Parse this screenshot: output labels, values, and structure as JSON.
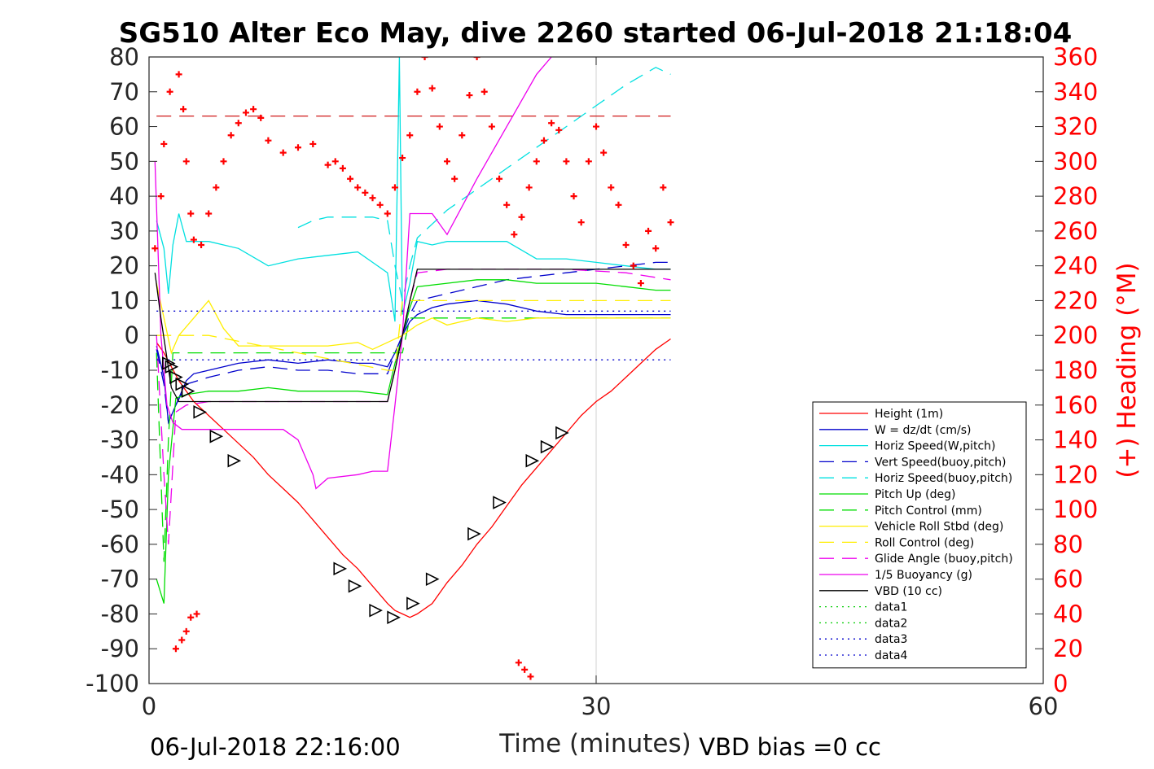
{
  "chart_data": {
    "type": "line",
    "title": "SG510 Alter Eco May, dive 2260 started 06-Jul-2018 21:18:04",
    "xlabel": "Time (minutes)",
    "ylabel_right": "(+) Heading (°M)",
    "xlim": [
      0,
      60
    ],
    "ylim": [
      -100,
      80
    ],
    "ylim_right": [
      0,
      360
    ],
    "xticks": [
      0,
      30,
      60
    ],
    "yticks": [
      -100,
      -90,
      -80,
      -70,
      -60,
      -50,
      -40,
      -30,
      -20,
      -10,
      0,
      10,
      20,
      30,
      40,
      50,
      60,
      70,
      80
    ],
    "yticks_right": [
      0,
      20,
      40,
      60,
      80,
      100,
      120,
      140,
      160,
      180,
      200,
      220,
      240,
      260,
      280,
      300,
      320,
      340,
      360
    ],
    "grid": "x at 30",
    "legend_position": "bottom-right",
    "footer_left": "06-Jul-2018 22:16:00",
    "footer_right": "VBD bias =0 cc",
    "series": [
      {
        "name": "Height (1m)",
        "color": "#ff0000",
        "style": "solid",
        "x": [
          0.5,
          1,
          1.5,
          2,
          2.5,
          3,
          4,
          5,
          6,
          7,
          8,
          9,
          10,
          11,
          12,
          13,
          14,
          15,
          16,
          16.5,
          17,
          17.5,
          18,
          19,
          20,
          21,
          22,
          23,
          24,
          25,
          26,
          27,
          28,
          29,
          30,
          31,
          32,
          33,
          34,
          35
        ],
        "y": [
          -2,
          -5,
          -9,
          -13,
          -16,
          -19,
          -23,
          -27,
          -31,
          -35,
          -40,
          -44,
          -48,
          -53,
          -58,
          -63,
          -67,
          -72,
          -77,
          -79,
          -80,
          -81,
          -80,
          -77,
          -71,
          -66,
          -60,
          -55,
          -49,
          -43,
          -38,
          -33,
          -28,
          -23,
          -19,
          -16,
          -12,
          -8,
          -4,
          -1
        ]
      },
      {
        "name": "W = dz/dt (cm/s)",
        "color": "#0000cc",
        "style": "solid",
        "x": [
          0.5,
          1,
          1.3,
          1.8,
          2.5,
          3,
          4,
          6,
          8,
          10,
          12,
          14,
          15,
          16,
          16.5,
          17,
          17.5,
          18,
          19,
          20,
          22,
          24,
          26,
          28,
          30,
          32,
          34,
          35
        ],
        "y": [
          -3,
          -12,
          -25,
          -20,
          -13,
          -11,
          -10,
          -8,
          -7,
          -8,
          -7,
          -8,
          -8,
          -9,
          -5,
          0,
          4,
          6,
          8,
          9,
          10,
          9,
          7,
          6,
          6,
          6,
          6,
          6
        ]
      },
      {
        "name": "Horiz Speed(W,pitch)",
        "color": "#00e0e0",
        "style": "solid",
        "x": [
          0.5,
          1,
          1.3,
          1.6,
          2,
          2.5,
          4,
          6,
          8,
          10,
          12,
          14,
          15,
          16,
          16.5,
          16.8,
          17,
          17.5,
          18,
          19,
          20,
          22,
          24,
          26,
          28,
          30,
          32,
          34,
          35
        ],
        "y": [
          33,
          25,
          12,
          26,
          35,
          27,
          27,
          25,
          20,
          22,
          23,
          24,
          21,
          18,
          4,
          80,
          6,
          15,
          27,
          26,
          27,
          27,
          27,
          22,
          22,
          21,
          20,
          19,
          19
        ]
      },
      {
        "name": "Vert Speed(buoy,pitch)",
        "color": "#0000cc",
        "style": "dashed",
        "x": [
          0.5,
          1,
          1.3,
          1.8,
          2.5,
          4,
          6,
          8,
          10,
          12,
          14,
          16,
          16.5,
          17,
          17.5,
          18,
          20,
          22,
          24,
          26,
          28,
          30,
          32,
          34,
          35
        ],
        "y": [
          -4,
          -14,
          -25,
          -20,
          -14,
          -12,
          -10,
          -9,
          -10,
          -10,
          -11,
          -11,
          -5,
          0,
          6,
          10,
          12,
          14,
          16,
          17,
          18,
          19,
          20,
          21,
          21
        ]
      },
      {
        "name": "Horiz Speed(buoy,pitch)",
        "color": "#00e0e0",
        "style": "dashed",
        "x": [
          10,
          11,
          12,
          13,
          14,
          15,
          16,
          16.5,
          17,
          17.5,
          18,
          19,
          20,
          22,
          24,
          26,
          28,
          30,
          32,
          34,
          35
        ],
        "y": [
          31,
          33,
          34,
          34,
          34,
          34,
          33,
          20,
          10,
          20,
          28,
          32,
          36,
          42,
          48,
          54,
          60,
          66,
          72,
          77,
          75
        ]
      },
      {
        "name": "Pitch Up (deg)",
        "color": "#00dd00",
        "style": "solid",
        "x": [
          0.5,
          1,
          1.3,
          1.8,
          2.5,
          4,
          6,
          8,
          10,
          12,
          14,
          16,
          16.5,
          17,
          17.5,
          18,
          20,
          22,
          24,
          26,
          28,
          30,
          32,
          34,
          35
        ],
        "y": [
          -70,
          -77,
          -40,
          -18,
          -17,
          -16,
          -16,
          -15,
          -16,
          -16,
          -16,
          -17,
          -8,
          0,
          8,
          14,
          15,
          16,
          16,
          15,
          15,
          15,
          14,
          13,
          13
        ]
      },
      {
        "name": "Pitch Control (mm)",
        "color": "#00dd00",
        "style": "dashed",
        "x": [
          0.5,
          1,
          1.3,
          1.6,
          2,
          16,
          16.5,
          17,
          17.5,
          18,
          35
        ],
        "y": [
          -5,
          -65,
          -30,
          -5,
          -5,
          -5,
          -5,
          -5,
          5,
          5,
          5
        ]
      },
      {
        "name": "Vehicle Roll Stbd (deg)",
        "color": "#ffee00",
        "style": "solid",
        "x": [
          0.5,
          1,
          1.5,
          2,
          3,
          4,
          5,
          6,
          8,
          10,
          12,
          14,
          15,
          16,
          17,
          18,
          19,
          20,
          22,
          24,
          26,
          28,
          30,
          32,
          34,
          35
        ],
        "y": [
          15,
          5,
          -5,
          0,
          5,
          10,
          2,
          -3,
          -3,
          -3,
          -3,
          -2,
          -4,
          -2,
          0,
          3,
          5,
          3,
          5,
          4,
          5,
          5,
          5,
          5,
          5,
          5
        ]
      },
      {
        "name": "Roll Control (deg)",
        "color": "#ffee00",
        "style": "dashed",
        "x": [
          0.5,
          2,
          4,
          16,
          16.5,
          17,
          18,
          20,
          26,
          35
        ],
        "y": [
          0,
          0,
          0,
          -10,
          -10,
          10,
          10,
          10,
          10,
          10
        ]
      },
      {
        "name": "Glide Angle (buoy,pitch)",
        "color": "#ee00ee",
        "style": "dashed",
        "x": [
          0.5,
          1,
          1.3,
          1.8,
          2.5,
          4,
          8,
          12,
          16,
          16.5,
          17,
          17.5,
          18,
          20,
          24,
          28,
          32,
          35
        ],
        "y": [
          0,
          -40,
          -60,
          -22,
          -20,
          -19,
          -19,
          -19,
          -19,
          -10,
          0,
          10,
          18,
          19,
          19,
          19,
          18,
          16
        ]
      },
      {
        "name": "1/5 Buoyancy (g)",
        "color": "#ee00ee",
        "style": "solid",
        "x": [
          0.4,
          0.8,
          1.2,
          1.6,
          2.2,
          4,
          6,
          8,
          9,
          10,
          10.5,
          11,
          11.2,
          12,
          14,
          15,
          16,
          16.5,
          17,
          17.5,
          19,
          20,
          22,
          24,
          26,
          27
        ],
        "y": [
          50,
          0,
          -20,
          -25,
          -27,
          -27,
          -27,
          -27,
          -27,
          -30,
          -35,
          -40,
          -44,
          -41,
          -40,
          -39,
          -39,
          -20,
          0,
          35,
          35,
          29,
          45,
          60,
          75,
          80
        ]
      },
      {
        "name": "VBD (10 cc)",
        "color": "#000000",
        "style": "solid",
        "x": [
          0.4,
          0.8,
          1.5,
          2,
          3,
          15,
          16,
          16.5,
          17,
          17.5,
          18,
          19,
          20,
          30,
          35
        ],
        "y": [
          18,
          5,
          -15,
          -19,
          -19,
          -19,
          -19,
          -10,
          0,
          10,
          19,
          19,
          19,
          19,
          19
        ]
      },
      {
        "name": "data1",
        "color": "#00cc00",
        "style": "dotted",
        "x": [],
        "y": []
      },
      {
        "name": "data2",
        "color": "#00cc00",
        "style": "dotted",
        "x": [],
        "y": []
      },
      {
        "name": "data3",
        "color": "#0000cc",
        "style": "dotted",
        "x": [
          0.5,
          35
        ],
        "y": [
          7,
          7
        ]
      },
      {
        "name": "data4",
        "color": "#0000cc",
        "style": "dotted",
        "x": [
          0.5,
          35
        ],
        "y": [
          -7,
          -7
        ]
      }
    ],
    "extra_lines": [
      {
        "color": "#cc0000",
        "style": "dashed",
        "x": [
          0.5,
          35
        ],
        "y": [
          63,
          63
        ]
      }
    ],
    "markers": [
      {
        "x": 1.3,
        "y": -8
      },
      {
        "x": 1.5,
        "y": -9
      },
      {
        "x": 1.8,
        "y": -12
      },
      {
        "x": 2.2,
        "y": -14
      },
      {
        "x": 2.6,
        "y": -16
      },
      {
        "x": 3.4,
        "y": -22
      },
      {
        "x": 4.5,
        "y": -29
      },
      {
        "x": 5.7,
        "y": -36
      },
      {
        "x": 12.8,
        "y": -67
      },
      {
        "x": 13.8,
        "y": -72
      },
      {
        "x": 15.2,
        "y": -79
      },
      {
        "x": 16.4,
        "y": -81
      },
      {
        "x": 17.7,
        "y": -77
      },
      {
        "x": 19,
        "y": -70
      },
      {
        "x": 21.8,
        "y": -57
      },
      {
        "x": 23.5,
        "y": -48
      },
      {
        "x": 25.7,
        "y": -36
      },
      {
        "x": 26.7,
        "y": -32
      },
      {
        "x": 27.7,
        "y": -28
      }
    ],
    "heading": {
      "color": "#ff0000",
      "x": [
        0.4,
        0.8,
        1,
        1.4,
        1.7,
        2,
        2.3,
        2.5,
        2.8,
        3,
        3.5,
        4,
        4.5,
        5,
        5.5,
        6,
        6.5,
        7,
        7.5,
        8,
        9,
        10,
        11,
        12,
        12.5,
        13,
        13.5,
        14,
        14.5,
        15,
        15.5,
        16,
        16.5,
        17,
        17.5,
        18,
        18.5,
        19,
        19.5,
        20,
        20.5,
        21,
        21.5,
        22,
        22.5,
        23,
        23.5,
        24,
        24.5,
        25,
        25.5,
        26,
        26.5,
        27,
        27.5,
        28,
        28.5,
        29,
        29.5,
        30,
        30.5,
        31,
        31.5,
        32,
        32.5,
        33,
        33.5,
        34,
        34.5,
        35,
        1.8,
        2.2,
        2.5,
        2.8,
        3.2,
        24.8,
        25.2,
        25.6
      ],
      "y": [
        250,
        280,
        310,
        340,
        365,
        350,
        330,
        300,
        270,
        255,
        252,
        270,
        285,
        300,
        315,
        322,
        328,
        330,
        325,
        312,
        305,
        308,
        310,
        298,
        300,
        296,
        290,
        285,
        282,
        279,
        275,
        270,
        285,
        302,
        315,
        340,
        360,
        342,
        320,
        300,
        290,
        315,
        338,
        360,
        340,
        320,
        290,
        275,
        258,
        268,
        285,
        300,
        312,
        322,
        318,
        300,
        280,
        265,
        300,
        320,
        305,
        285,
        275,
        252,
        240,
        230,
        260,
        250,
        285,
        265,
        20,
        25,
        30,
        38,
        40,
        12,
        8,
        4
      ]
    }
  }
}
